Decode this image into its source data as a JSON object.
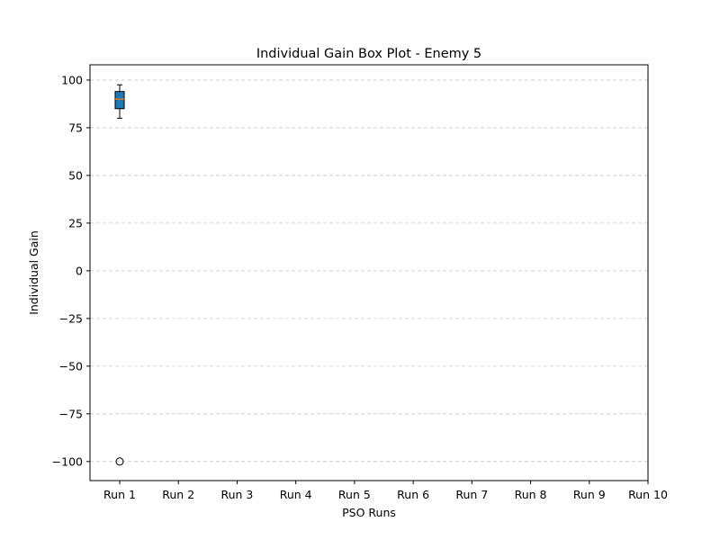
{
  "chart_data": {
    "type": "box",
    "title": "Individual Gain Box Plot - Enemy 5",
    "xlabel": "PSO Runs",
    "ylabel": "Individual Gain",
    "categories": [
      "Run 1",
      "Run 2",
      "Run 3",
      "Run 4",
      "Run 5",
      "Run 6",
      "Run 7",
      "Run 8",
      "Run 9",
      "Run 10"
    ],
    "yticks": [
      -100,
      -75,
      -50,
      -25,
      0,
      25,
      50,
      75,
      100
    ],
    "ylim": [
      -110,
      108
    ],
    "grid": {
      "y": true,
      "x": false,
      "style": "dashed",
      "color": "#c8c8c8"
    },
    "box_color": "#1f77b4",
    "median_color": "#ff7f0e",
    "boxes": [
      {
        "category": "Run 1",
        "whisker_low": 80,
        "q1": 85,
        "median": 90,
        "q3": 94,
        "whisker_high": 97.5,
        "outliers": [
          -100
        ]
      }
    ]
  }
}
